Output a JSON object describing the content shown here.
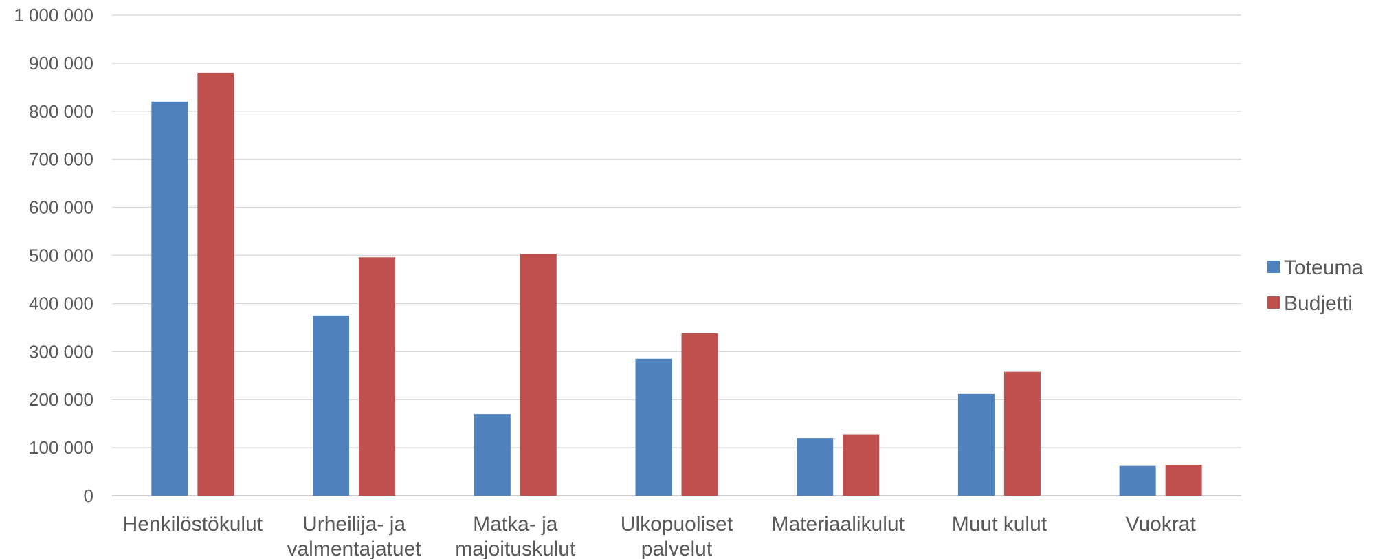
{
  "chart_data": {
    "type": "bar",
    "categories": [
      [
        "Henkilöstökulut"
      ],
      [
        "Urheilija- ja",
        "valmentajatuet"
      ],
      [
        "Matka- ja",
        "majoituskulut"
      ],
      [
        "Ulkopuoliset",
        "palvelut"
      ],
      [
        "Materiaalikulut"
      ],
      [
        "Muut kulut"
      ],
      [
        "Vuokrat"
      ]
    ],
    "series": [
      {
        "name": "Toteuma",
        "color": "#4F81BD",
        "values": [
          820000,
          375000,
          170000,
          285000,
          120000,
          212000,
          62000
        ]
      },
      {
        "name": "Budjetti",
        "color": "#C0504D",
        "values": [
          880000,
          496000,
          503000,
          338000,
          128000,
          258000,
          64000
        ]
      }
    ],
    "ylim": [
      0,
      1000000
    ],
    "yticks": [
      0,
      100000,
      200000,
      300000,
      400000,
      500000,
      600000,
      700000,
      800000,
      900000,
      1000000
    ],
    "ytick_labels": [
      "0",
      "100 000",
      "200 000",
      "300 000",
      "400 000",
      "500 000",
      "600 000",
      "700 000",
      "800 000",
      "900 000",
      "1 000 000"
    ],
    "grid": true,
    "legend_position": "right",
    "title": "",
    "xlabel": "",
    "ylabel": ""
  }
}
